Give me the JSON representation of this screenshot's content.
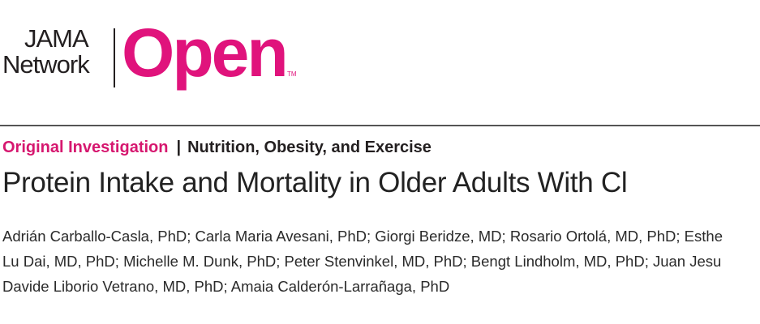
{
  "logo": {
    "line1": "JAMA",
    "line2": "Network",
    "brand": "Open",
    "trademark": "TM"
  },
  "section": {
    "type": "Original Investigation",
    "separator": "|",
    "topic": "Nutrition, Obesity, and Exercise"
  },
  "title": "Protein Intake and Mortality in Older Adults With Cl",
  "authors": [
    "Adrián Carballo-Casla, PhD; Carla Maria Avesani, PhD; Giorgi Beridze, MD; Rosario Ortolá, MD, PhD; Esthe",
    "Lu Dai, MD, PhD; Michelle M. Dunk, PhD; Peter Stenvinkel, MD, PhD; Bengt Lindholm, MD, PhD; Juan Jesu",
    "Davide Liborio Vetrano, MD, PhD; Amaia Calderón-Larrañaga, PhD"
  ]
}
